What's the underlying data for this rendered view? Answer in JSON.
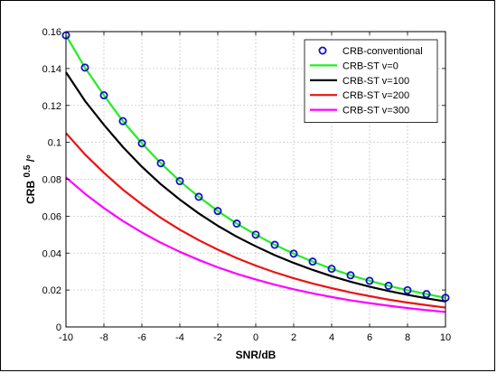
{
  "chart_data": {
    "type": "line",
    "xlabel": "SNR/dB",
    "ylabel_main": "CRB",
    "ylabel_sup": "0.5",
    "ylabel_tail": "/°",
    "xlim": [
      -10,
      10
    ],
    "ylim": [
      0,
      0.16
    ],
    "xticks": [
      "-10",
      "-8",
      "-6",
      "-4",
      "-2",
      "0",
      "2",
      "4",
      "6",
      "8",
      "10"
    ],
    "yticks": [
      "0",
      "0.02",
      "0.04",
      "0.06",
      "0.08",
      "0.1",
      "0.12",
      "0.14",
      "0.16"
    ],
    "grid": true,
    "legend_position": "top-right",
    "x": [
      -10,
      -9,
      -8,
      -7,
      -6,
      -5,
      -4,
      -3,
      -2,
      -1,
      0,
      1,
      2,
      3,
      4,
      5,
      6,
      7,
      8,
      9,
      10
    ],
    "series": [
      {
        "name": "CRB-conventional",
        "style": "markers",
        "color": "#1010cc",
        "values": [
          0.158,
          0.1405,
          0.1255,
          0.1115,
          0.0995,
          0.0887,
          0.079,
          0.0705,
          0.0628,
          0.056,
          0.05,
          0.0445,
          0.0397,
          0.0354,
          0.0315,
          0.028,
          0.025,
          0.0223,
          0.0199,
          0.0178,
          0.0158
        ]
      },
      {
        "name": "CRB-ST v=0",
        "style": "line",
        "color": "#22ee22",
        "values": [
          0.158,
          0.1405,
          0.1255,
          0.1115,
          0.0995,
          0.0887,
          0.079,
          0.0705,
          0.0628,
          0.056,
          0.05,
          0.0445,
          0.0397,
          0.0354,
          0.0315,
          0.028,
          0.025,
          0.0223,
          0.0199,
          0.0178,
          0.0158
        ]
      },
      {
        "name": "CRB-ST v=100",
        "style": "line",
        "color": "#000000",
        "values": [
          0.138,
          0.1225,
          0.1095,
          0.0975,
          0.0868,
          0.0773,
          0.069,
          0.0615,
          0.0548,
          0.0489,
          0.0437,
          0.0389,
          0.0347,
          0.0309,
          0.0275,
          0.0245,
          0.0218,
          0.0195,
          0.0174,
          0.0155,
          0.0138
        ]
      },
      {
        "name": "CRB-ST v=200",
        "style": "line",
        "color": "#ee1111",
        "values": [
          0.105,
          0.0935,
          0.0835,
          0.0744,
          0.0664,
          0.0591,
          0.0527,
          0.047,
          0.0419,
          0.0373,
          0.0332,
          0.0296,
          0.0264,
          0.0235,
          0.021,
          0.0187,
          0.0167,
          0.0148,
          0.0132,
          0.0118,
          0.0105
        ]
      },
      {
        "name": "CRB-ST v=300",
        "style": "line",
        "color": "#ff00ff",
        "values": [
          0.081,
          0.0722,
          0.0644,
          0.0574,
          0.0512,
          0.0456,
          0.0407,
          0.0363,
          0.0323,
          0.0288,
          0.0257,
          0.0229,
          0.0204,
          0.0182,
          0.0162,
          0.0144,
          0.0129,
          0.0115,
          0.0102,
          0.0091,
          0.0081
        ]
      }
    ]
  }
}
